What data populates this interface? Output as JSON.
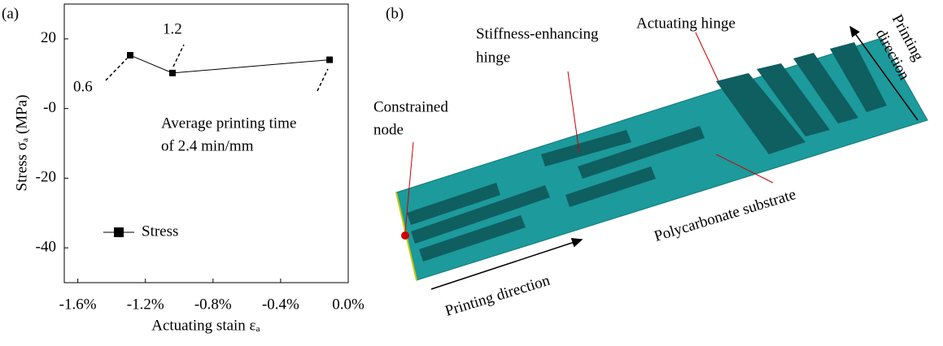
{
  "chart_data": {
    "type": "line",
    "panel_label": "(a)",
    "x_label": "Actuating stain εₐ",
    "y_label": "Stress σₐ (MPa)",
    "x": [
      -1.29,
      -1.04,
      -0.11
    ],
    "series": [
      {
        "name": "Stress",
        "color": "#000000",
        "values": [
          15.3,
          10.2,
          14.0
        ]
      }
    ],
    "xlim": [
      -1.68,
      0
    ],
    "ylim": [
      -50,
      30
    ],
    "xticks": [
      {
        "value": -1.6,
        "label": "-1.6%"
      },
      {
        "value": -1.2,
        "label": "-1.2%"
      },
      {
        "value": -0.8,
        "label": "-0.8%"
      },
      {
        "value": -0.4,
        "label": "-0.4%"
      },
      {
        "value": 0,
        "label": "0.0%"
      }
    ],
    "yticks": [
      20,
      {
        "value": 0,
        "label": "-0"
      },
      -20,
      -40
    ],
    "annotations": [
      "0.6",
      "1.2",
      "Average printing time",
      "of 2.4 min/mm"
    ],
    "legend": "lower left"
  },
  "panel_b": {
    "panel_label": "(b)",
    "labels": {
      "stiffness": [
        "Stiffness-enhancing",
        "hinge"
      ],
      "actuating": "Actuating hinge",
      "printing_top": [
        "Printing",
        "direction"
      ],
      "constrained": [
        "Constrained",
        "node"
      ],
      "substrate": "Polycarbonate substrate",
      "printing_bottom": "Printing direction"
    }
  }
}
